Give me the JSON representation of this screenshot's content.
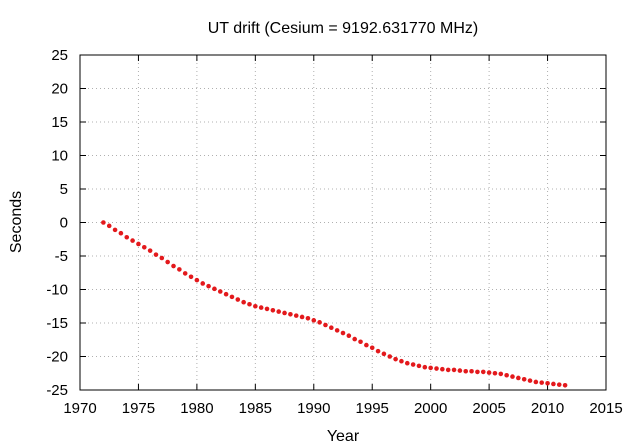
{
  "chart_data": {
    "type": "scatter",
    "title": "UT drift (Cesium = 9192.631770 MHz)",
    "xlabel": "Year",
    "ylabel": "Seconds",
    "xlim": [
      1970,
      2015
    ],
    "ylim": [
      -25,
      25
    ],
    "xticks": [
      1970,
      1975,
      1980,
      1985,
      1990,
      1995,
      2000,
      2005,
      2010,
      2015
    ],
    "yticks": [
      25,
      20,
      15,
      10,
      5,
      0,
      -5,
      -10,
      -15,
      -20,
      -25
    ],
    "grid": true,
    "marker_color": "#e3191c",
    "series": [
      {
        "x": [
          1972.0,
          1972.5,
          1973.0,
          1973.5,
          1974.0,
          1974.5,
          1975.0,
          1975.5,
          1976.0,
          1976.5,
          1977.0,
          1977.5,
          1978.0,
          1978.5,
          1979.0,
          1979.5,
          1980.0,
          1980.5,
          1981.0,
          1981.5,
          1982.0,
          1982.5,
          1983.0,
          1983.5,
          1984.0,
          1984.5,
          1985.0,
          1985.5,
          1986.0,
          1986.5,
          1987.0,
          1987.5,
          1988.0,
          1988.5,
          1989.0,
          1989.5,
          1990.0,
          1990.5,
          1991.0,
          1991.5,
          1992.0,
          1992.5,
          1993.0,
          1993.5,
          1994.0,
          1994.5,
          1995.0,
          1995.5,
          1996.0,
          1996.5,
          1997.0,
          1997.5,
          1998.0,
          1998.5,
          1999.0,
          1999.5,
          2000.0,
          2000.5,
          2001.0,
          2001.5,
          2002.0,
          2002.5,
          2003.0,
          2003.5,
          2004.0,
          2004.5,
          2005.0,
          2005.5,
          2006.0,
          2006.5,
          2007.0,
          2007.5,
          2008.0,
          2008.5,
          2009.0,
          2009.5,
          2010.0,
          2010.5,
          2011.0,
          2011.5
        ],
        "y": [
          0.0,
          -0.5,
          -1.1,
          -1.6,
          -2.2,
          -2.7,
          -3.2,
          -3.7,
          -4.2,
          -4.8,
          -5.3,
          -5.9,
          -6.5,
          -7.0,
          -7.6,
          -8.1,
          -8.6,
          -9.1,
          -9.5,
          -9.9,
          -10.3,
          -10.7,
          -11.1,
          -11.5,
          -11.9,
          -12.2,
          -12.5,
          -12.7,
          -12.9,
          -13.1,
          -13.3,
          -13.5,
          -13.7,
          -13.9,
          -14.1,
          -14.3,
          -14.6,
          -14.9,
          -15.3,
          -15.7,
          -16.1,
          -16.5,
          -16.9,
          -17.4,
          -17.8,
          -18.3,
          -18.7,
          -19.2,
          -19.6,
          -20.0,
          -20.4,
          -20.7,
          -21.0,
          -21.2,
          -21.4,
          -21.6,
          -21.7,
          -21.8,
          -21.9,
          -22.0,
          -22.0,
          -22.1,
          -22.2,
          -22.2,
          -22.3,
          -22.3,
          -22.4,
          -22.5,
          -22.6,
          -22.8,
          -23.0,
          -23.2,
          -23.4,
          -23.6,
          -23.8,
          -23.9,
          -24.0,
          -24.1,
          -24.2,
          -24.3
        ]
      }
    ]
  }
}
